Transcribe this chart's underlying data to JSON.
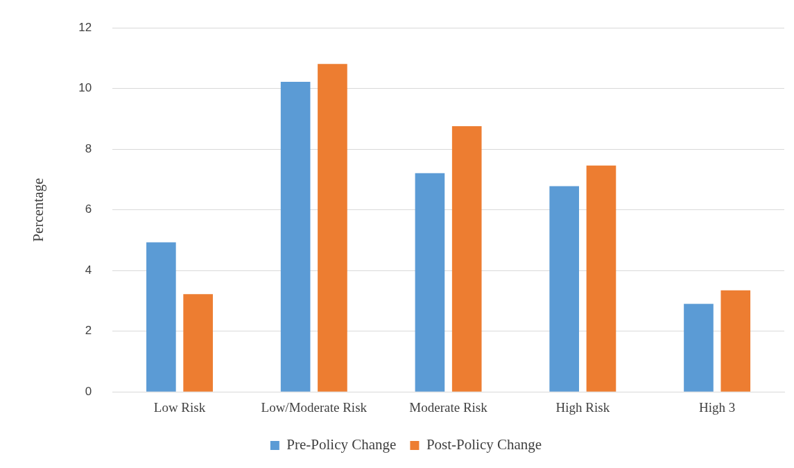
{
  "chart_data": {
    "type": "bar",
    "ylabel": "Percentage",
    "categories": [
      "Low Risk",
      "Low/Moderate Risk",
      "Moderate Risk",
      "High Risk",
      "High 3"
    ],
    "series": [
      {
        "name": "Pre-Policy Change",
        "color": "#5b9bd5",
        "values": [
          4.93,
          10.22,
          7.21,
          6.78,
          2.9
        ]
      },
      {
        "name": "Post-Policy Change",
        "color": "#ed7d31",
        "values": [
          3.22,
          10.81,
          8.76,
          7.46,
          3.35
        ]
      }
    ],
    "ylim": [
      0,
      12
    ],
    "yticks": [
      0,
      2,
      4,
      6,
      8,
      10,
      12
    ],
    "grid": "y",
    "legend": "bottom"
  }
}
